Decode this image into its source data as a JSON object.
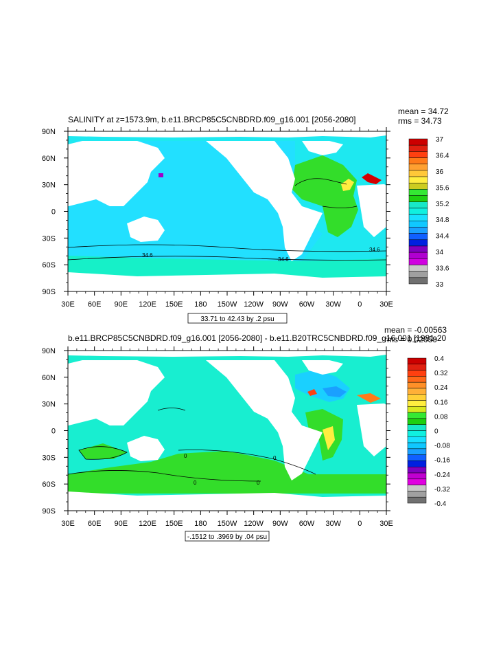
{
  "chart_data": [
    {
      "type": "heatmap",
      "title": "SALINITY at z=1573.9m, b.e11.BRCP85C5CNBDRD.f09_g16.001 [2056-2080]",
      "stats": {
        "mean": "mean = 34.72",
        "rms": "rms = 34.73"
      },
      "xlabels": [
        "30E",
        "60E",
        "90E",
        "120E",
        "150E",
        "180",
        "150W",
        "120W",
        "90W",
        "60W",
        "30W",
        "0",
        "30E"
      ],
      "ylabels": [
        "90N",
        "60N",
        "30N",
        "0",
        "30S",
        "60S",
        "90S"
      ],
      "ylim": [
        -90,
        90
      ],
      "contour_labels": [
        "34.6",
        "34.6",
        "34.6"
      ],
      "range_label": "33.71 to 42.43 by .2 psu",
      "colorbar": {
        "levels": [
          37,
          36.4,
          36,
          35.6,
          35.2,
          34.8,
          34.4,
          34,
          33.6,
          33
        ],
        "labels": [
          "37",
          "36.4",
          "36",
          "35.6",
          "35.2",
          "34.8",
          "34.4",
          "34",
          "33.6",
          "33"
        ],
        "colors": [
          "#cc0000",
          "#e02010",
          "#ff4010",
          "#ff7a18",
          "#ffa030",
          "#ffc838",
          "#ffee40",
          "#cccc20",
          "#34e834",
          "#1ed010",
          "#18e8c8",
          "#10f0e0",
          "#18e0ff",
          "#10c8ff",
          "#1aa0ff",
          "#1060ff",
          "#0020e0",
          "#8000c0",
          "#b000d0",
          "#d000e0",
          "#c8c8c8",
          "#a0a0a0",
          "#707070"
        ]
      }
    },
    {
      "type": "heatmap",
      "title": "b.e11.BRCP85C5CNBDRD.f09_g16.001 [2056-2080] - b.e11.B20TRC5CNBDRD.f09_g16.001 [1981-20",
      "stats": {
        "mean": "mean = -0.00563",
        "rms": "rms = 0.02059"
      },
      "xlabels": [
        "30E",
        "60E",
        "90E",
        "120E",
        "150E",
        "180",
        "150W",
        "120W",
        "90W",
        "60W",
        "30W",
        "0",
        "30E"
      ],
      "ylabels": [
        "90N",
        "60N",
        "30N",
        "0",
        "30S",
        "60S",
        "90S"
      ],
      "ylim": [
        -90,
        90
      ],
      "contour_labels": [
        "0",
        "0",
        "0",
        "0"
      ],
      "range_label": "-.1512 to .3969 by .04 psu",
      "colorbar": {
        "levels": [
          0.4,
          0.32,
          0.24,
          0.16,
          0.08,
          0,
          -0.08,
          -0.16,
          -0.24,
          -0.32,
          -0.4
        ],
        "labels": [
          "0.4",
          "0.32",
          "0.24",
          "0.16",
          "0.08",
          "0",
          "-0.08",
          "-0.16",
          "-0.24",
          "-0.32",
          "-0.4"
        ],
        "colors": [
          "#cc0000",
          "#e02010",
          "#ff4010",
          "#ff6818",
          "#ff9028",
          "#ffb038",
          "#ffd038",
          "#ffee40",
          "#d8e820",
          "#34e834",
          "#1ed010",
          "#18e8c8",
          "#10f0e0",
          "#18e0ff",
          "#10c8ff",
          "#1aa0ff",
          "#1060ff",
          "#0020e0",
          "#8000c0",
          "#c000d0",
          "#e000e0",
          "#c8c8c8",
          "#a0a0a0",
          "#707070"
        ]
      }
    }
  ]
}
